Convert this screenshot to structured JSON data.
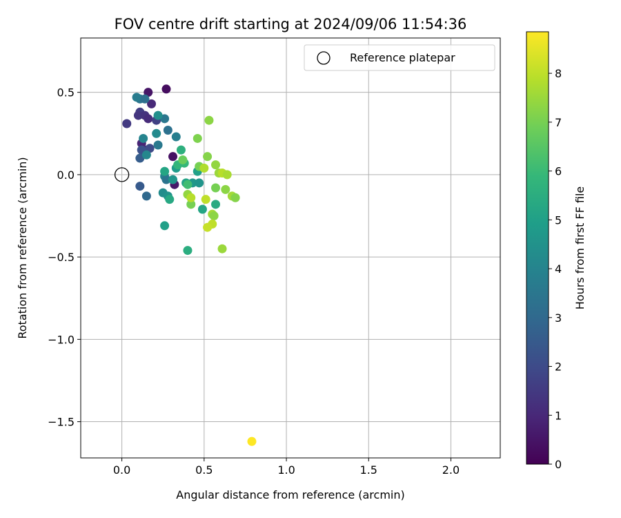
{
  "chart_data": {
    "type": "scatter",
    "title": "FOV centre drift starting at 2024/09/06 11:54:36",
    "xlabel": "Angular distance from reference (arcmin)",
    "ylabel": "Rotation from reference (arcmin)",
    "xlim": [
      -0.25,
      2.3
    ],
    "ylim": [
      -1.72,
      0.83
    ],
    "xticks": [
      0.0,
      0.5,
      1.0,
      1.5,
      2.0
    ],
    "xtick_labels": [
      "0.0",
      "0.5",
      "1.0",
      "1.5",
      "2.0"
    ],
    "yticks": [
      0.5,
      0.0,
      -0.5,
      -1.0,
      -1.5
    ],
    "ytick_labels": [
      "0.5",
      "0.0",
      "−0.5",
      "−1.0",
      "−1.5"
    ],
    "grid": true,
    "legend": {
      "position": "top-right",
      "entries": [
        {
          "label": "Reference platepar",
          "marker": "hollow-circle"
        }
      ]
    },
    "reference_point": {
      "x": 0.0,
      "y": 0.0
    },
    "colorbar": {
      "label": "Hours from first FF file",
      "colormap": "viridis",
      "range": [
        0,
        8.85
      ],
      "ticks": [
        0,
        1,
        2,
        3,
        4,
        5,
        6,
        7,
        8
      ],
      "tick_labels": [
        "0",
        "1",
        "2",
        "3",
        "4",
        "5",
        "6",
        "7",
        "8"
      ]
    },
    "points": [
      {
        "x": 0.27,
        "y": 0.52,
        "h": 0.3
      },
      {
        "x": 0.16,
        "y": 0.5,
        "h": 0.5
      },
      {
        "x": 0.18,
        "y": 0.43,
        "h": 1.0
      },
      {
        "x": 0.31,
        "y": 0.11,
        "h": 0.4
      },
      {
        "x": 0.32,
        "y": -0.06,
        "h": 0.6
      },
      {
        "x": 0.12,
        "y": 0.19,
        "h": 0.9
      },
      {
        "x": 0.14,
        "y": 0.15,
        "h": 1.2
      },
      {
        "x": 0.03,
        "y": 0.31,
        "h": 1.5
      },
      {
        "x": 0.11,
        "y": 0.38,
        "h": 1.6
      },
      {
        "x": 0.1,
        "y": 0.36,
        "h": 1.4
      },
      {
        "x": 0.14,
        "y": 0.36,
        "h": 1.3
      },
      {
        "x": 0.16,
        "y": 0.34,
        "h": 1.1
      },
      {
        "x": 0.21,
        "y": 0.33,
        "h": 1.7
      },
      {
        "x": 0.17,
        "y": 0.16,
        "h": 2.0
      },
      {
        "x": 0.12,
        "y": 0.15,
        "h": 2.2
      },
      {
        "x": 0.11,
        "y": 0.1,
        "h": 2.6
      },
      {
        "x": 0.11,
        "y": -0.07,
        "h": 2.5
      },
      {
        "x": 0.15,
        "y": -0.13,
        "h": 3.0
      },
      {
        "x": 0.11,
        "y": 0.46,
        "h": 3.4
      },
      {
        "x": 0.09,
        "y": 0.47,
        "h": 3.7
      },
      {
        "x": 0.14,
        "y": 0.46,
        "h": 3.2
      },
      {
        "x": 0.26,
        "y": 0.34,
        "h": 3.5
      },
      {
        "x": 0.28,
        "y": 0.27,
        "h": 3.3
      },
      {
        "x": 0.33,
        "y": 0.23,
        "h": 3.8
      },
      {
        "x": 0.22,
        "y": 0.18,
        "h": 3.6
      },
      {
        "x": 0.21,
        "y": 0.25,
        "h": 4.2
      },
      {
        "x": 0.22,
        "y": 0.36,
        "h": 4.4
      },
      {
        "x": 0.13,
        "y": 0.22,
        "h": 4.0
      },
      {
        "x": 0.15,
        "y": 0.12,
        "h": 4.1
      },
      {
        "x": 0.26,
        "y": -0.01,
        "h": 3.9
      },
      {
        "x": 0.27,
        "y": -0.03,
        "h": 3.4
      },
      {
        "x": 0.25,
        "y": -0.11,
        "h": 4.3
      },
      {
        "x": 0.31,
        "y": -0.03,
        "h": 4.6
      },
      {
        "x": 0.33,
        "y": 0.04,
        "h": 4.8
      },
      {
        "x": 0.28,
        "y": -0.13,
        "h": 4.5
      },
      {
        "x": 0.29,
        "y": -0.15,
        "h": 5.3
      },
      {
        "x": 0.26,
        "y": 0.02,
        "h": 5.2
      },
      {
        "x": 0.36,
        "y": 0.15,
        "h": 5.6
      },
      {
        "x": 0.38,
        "y": 0.07,
        "h": 5.9
      },
      {
        "x": 0.39,
        "y": -0.05,
        "h": 5.1
      },
      {
        "x": 0.43,
        "y": -0.05,
        "h": 4.7
      },
      {
        "x": 0.46,
        "y": 0.02,
        "h": 5.0
      },
      {
        "x": 0.47,
        "y": -0.05,
        "h": 4.6
      },
      {
        "x": 0.49,
        "y": -0.21,
        "h": 5.2
      },
      {
        "x": 0.57,
        "y": -0.18,
        "h": 5.4
      },
      {
        "x": 0.26,
        "y": -0.31,
        "h": 5.0
      },
      {
        "x": 0.4,
        "y": -0.46,
        "h": 5.5
      },
      {
        "x": 0.34,
        "y": 0.06,
        "h": 5.8
      },
      {
        "x": 0.4,
        "y": -0.06,
        "h": 6.1
      },
      {
        "x": 0.37,
        "y": 0.09,
        "h": 6.8
      },
      {
        "x": 0.46,
        "y": 0.22,
        "h": 7.1
      },
      {
        "x": 0.53,
        "y": 0.33,
        "h": 7.3
      },
      {
        "x": 0.52,
        "y": 0.11,
        "h": 7.2
      },
      {
        "x": 0.57,
        "y": 0.06,
        "h": 7.4
      },
      {
        "x": 0.59,
        "y": 0.01,
        "h": 7.5
      },
      {
        "x": 0.57,
        "y": -0.08,
        "h": 7.0
      },
      {
        "x": 0.63,
        "y": -0.09,
        "h": 7.3
      },
      {
        "x": 0.67,
        "y": -0.13,
        "h": 7.6
      },
      {
        "x": 0.69,
        "y": -0.14,
        "h": 7.2
      },
      {
        "x": 0.47,
        "y": 0.05,
        "h": 7.0
      },
      {
        "x": 0.5,
        "y": 0.04,
        "h": 7.8
      },
      {
        "x": 0.61,
        "y": 0.01,
        "h": 7.9
      },
      {
        "x": 0.64,
        "y": 0.0,
        "h": 7.7
      },
      {
        "x": 0.4,
        "y": -0.12,
        "h": 7.4
      },
      {
        "x": 0.42,
        "y": -0.18,
        "h": 7.0
      },
      {
        "x": 0.42,
        "y": -0.14,
        "h": 7.9
      },
      {
        "x": 0.51,
        "y": -0.15,
        "h": 8.0
      },
      {
        "x": 0.55,
        "y": -0.24,
        "h": 7.6
      },
      {
        "x": 0.56,
        "y": -0.25,
        "h": 7.3
      },
      {
        "x": 0.55,
        "y": -0.3,
        "h": 8.0
      },
      {
        "x": 0.52,
        "y": -0.32,
        "h": 8.1
      },
      {
        "x": 0.61,
        "y": -0.45,
        "h": 7.5
      },
      {
        "x": 0.79,
        "y": -1.62,
        "h": 8.85
      }
    ]
  }
}
